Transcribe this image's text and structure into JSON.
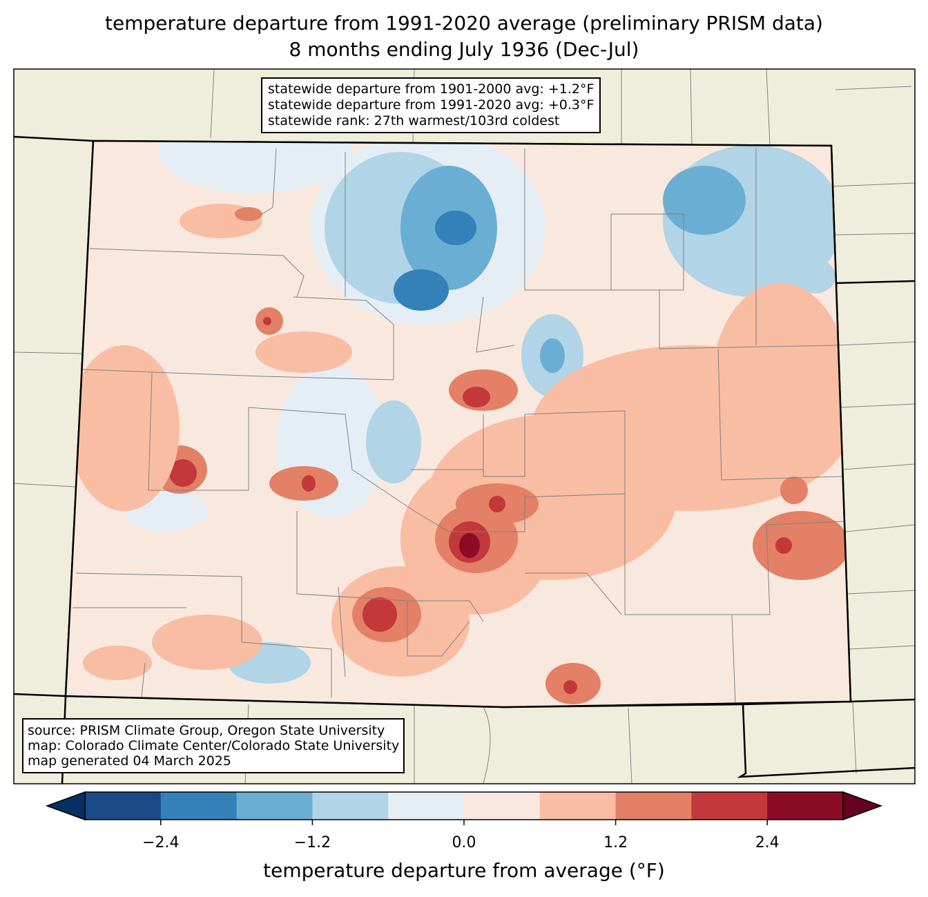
{
  "title": {
    "line1": "temperature departure from 1991-2020 average (preliminary PRISM data)",
    "line2": "8 months ending July 1936 (Dec-Jul)"
  },
  "stats_box": {
    "line1": "statewide departure from 1901-2000 avg: +1.2°F",
    "line2": "statewide departure from 1991-2020 avg: +0.3°F",
    "line3": "statewide rank: 27th warmest/103rd coldest"
  },
  "source_box": {
    "line1": "source: PRISM Climate Group, Oregon State University",
    "line2": "map: Colorado Climate Center/Colorado State University",
    "line3": "map generated 04 March 2025"
  },
  "colorbar": {
    "label": "temperature departure from average (°F)",
    "bounds": [
      -3.0,
      -2.4,
      -1.8,
      -1.2,
      -0.6,
      0.0,
      0.6,
      1.2,
      1.8,
      2.4,
      3.0
    ],
    "ticks": [
      "−2.4",
      "−1.2",
      "0.0",
      "1.2",
      "2.4"
    ],
    "tick_values": [
      -2.4,
      -1.2,
      0.0,
      1.2,
      2.4
    ],
    "colors": [
      "#1a4a85",
      "#3480b9",
      "#6aaed3",
      "#b1d4e6",
      "#e5eef4",
      "#f9e8de",
      "#f8bda3",
      "#e38066",
      "#c3393b",
      "#8a0c25"
    ],
    "extend_min_color": "#053061",
    "extend_max_color": "#67001f"
  },
  "map_colors": {
    "land": "#efeedc",
    "county_lines": "#808080"
  }
}
